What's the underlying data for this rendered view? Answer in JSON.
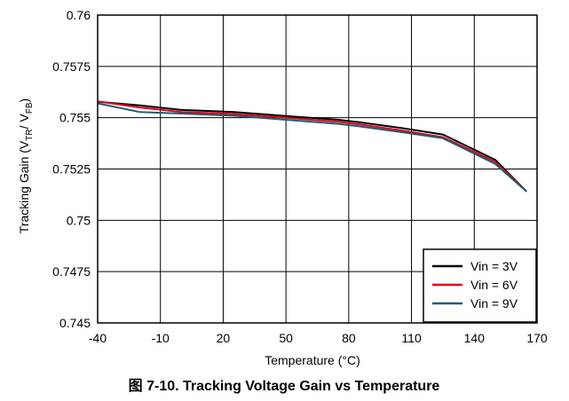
{
  "chart_data": {
    "type": "line",
    "xlabel": "Temperature (°C)",
    "ylabel_main": "Tracking Gain (V",
    "ylabel_sub1": "TR",
    "ylabel_mid": "/ V",
    "ylabel_sub2": "FB",
    "ylabel_end": ")",
    "caption": "图 7-10. Tracking Voltage Gain vs Temperature",
    "xlim": [
      -40,
      170
    ],
    "ylim": [
      0.745,
      0.76
    ],
    "x_ticks": [
      -40,
      -10,
      20,
      50,
      80,
      110,
      140,
      170
    ],
    "x_tick_labels": [
      "-40",
      "-10",
      "20",
      "50",
      "80",
      "110",
      "140",
      "170"
    ],
    "y_ticks": [
      0.745,
      0.7475,
      0.75,
      0.7525,
      0.755,
      0.7575,
      0.76
    ],
    "y_tick_labels": [
      "0.745",
      "0.7475",
      "0.75",
      "0.7525",
      "0.755",
      "0.7575",
      "0.76"
    ],
    "grid": true,
    "legend_position": "bottom-right",
    "series": [
      {
        "name": "Vin = 3V",
        "color": "#000000",
        "x": [
          -40,
          -20,
          0,
          25,
          50,
          75,
          85,
          105,
          125,
          150,
          165
        ],
        "y": [
          0.75578,
          0.7556,
          0.75538,
          0.75528,
          0.75508,
          0.7549,
          0.75478,
          0.7545,
          0.75418,
          0.75295,
          0.7514
        ]
      },
      {
        "name": "Vin = 6V",
        "color": "#e0001b",
        "x": [
          -40,
          -20,
          0,
          25,
          50,
          75,
          85,
          105,
          125,
          150,
          165
        ],
        "y": [
          0.7558,
          0.7555,
          0.75528,
          0.75518,
          0.755,
          0.7548,
          0.75468,
          0.75438,
          0.75405,
          0.75285,
          0.7514
        ]
      },
      {
        "name": "Vin = 9V",
        "color": "#1b5e70",
        "x": [
          -40,
          -20,
          0,
          25,
          50,
          75,
          85,
          105,
          125,
          150,
          165
        ],
        "y": [
          0.7557,
          0.75528,
          0.7552,
          0.7551,
          0.7549,
          0.7547,
          0.75458,
          0.7543,
          0.754,
          0.75275,
          0.7514
        ]
      }
    ]
  }
}
